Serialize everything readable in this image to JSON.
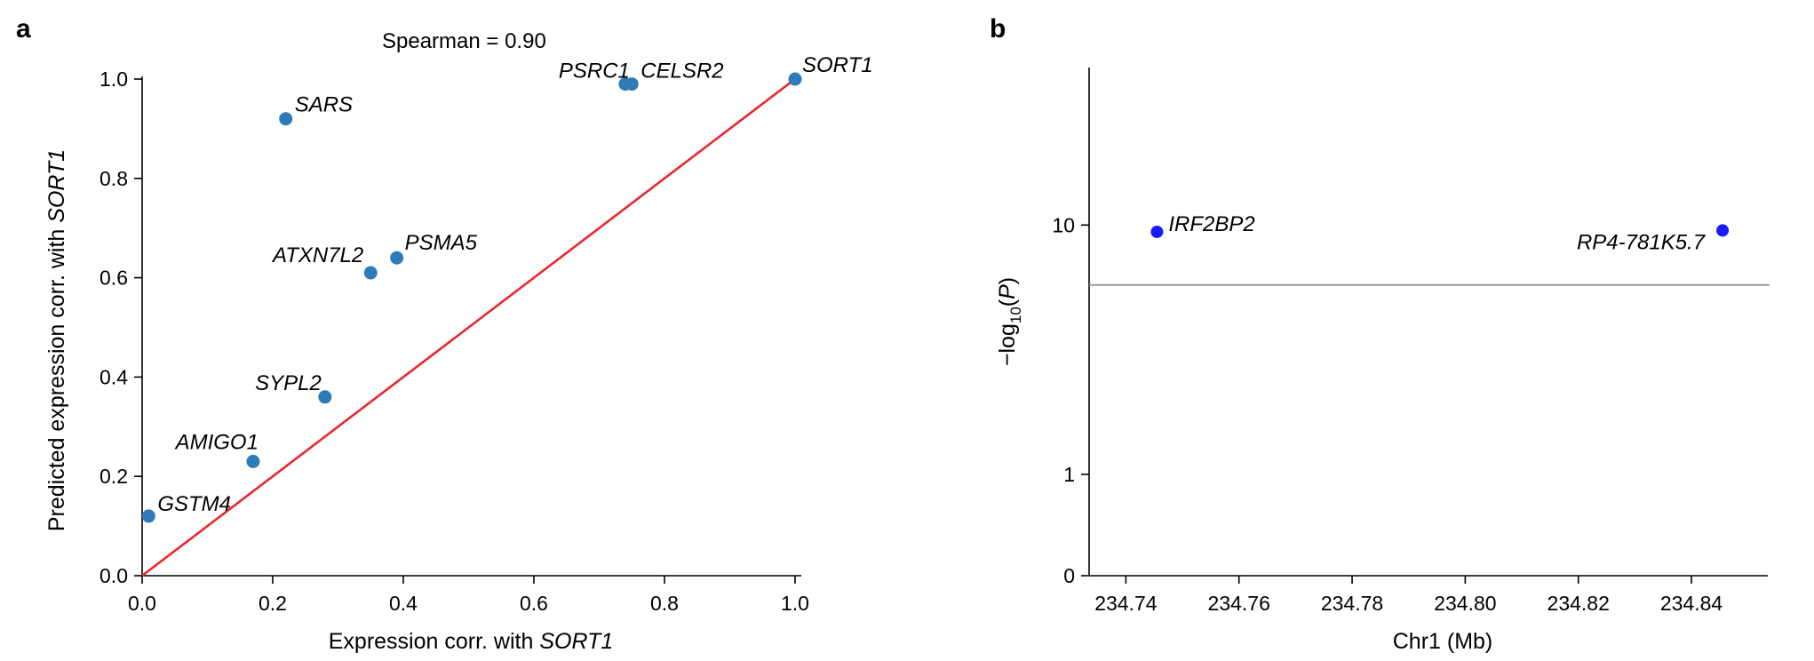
{
  "chart_data": [
    {
      "type": "scatter",
      "panel_label": "a",
      "title": "",
      "annotation": "Spearman = 0.90",
      "xlabel_prefix": "Expression corr. with ",
      "xlabel_gene": "SORT1",
      "ylabel_prefix": "Predicted expression corr. with ",
      "ylabel_gene": "SORT1",
      "xlim": [
        0.0,
        1.0
      ],
      "ylim": [
        0.0,
        1.0
      ],
      "xticks": [
        "0.0",
        "0.2",
        "0.4",
        "0.6",
        "0.8",
        "1.0"
      ],
      "yticks": [
        "0.0",
        "0.2",
        "0.4",
        "0.6",
        "0.8",
        "1.0"
      ],
      "grid": false,
      "point_color": "#2f7bb8",
      "line_color": "#e8262d",
      "reference_line": [
        [
          0.0,
          0.0
        ],
        [
          1.0,
          1.0
        ]
      ],
      "points": [
        {
          "label": "GSTM4",
          "x": 0.01,
          "y": 0.12
        },
        {
          "label": "AMIGO1",
          "x": 0.17,
          "y": 0.23
        },
        {
          "label": "SARS",
          "x": 0.22,
          "y": 0.92
        },
        {
          "label": "SYPL2",
          "x": 0.28,
          "y": 0.36
        },
        {
          "label": "ATXN7L2",
          "x": 0.35,
          "y": 0.61
        },
        {
          "label": "PSMA5",
          "x": 0.39,
          "y": 0.64
        },
        {
          "label": "PSRC1",
          "x": 0.74,
          "y": 0.99
        },
        {
          "label": "CELSR2",
          "x": 0.75,
          "y": 0.99
        },
        {
          "label": "SORT1",
          "x": 1.0,
          "y": 1.0
        }
      ]
    },
    {
      "type": "scatter",
      "panel_label": "b",
      "title": "",
      "xlabel": "Chr1 (Mb)",
      "ylabel_parts": [
        "−log",
        "10",
        "(",
        "P",
        ")"
      ],
      "xlim": [
        234.7335,
        234.8535
      ],
      "xticks": [
        "234.74",
        "234.76",
        "234.78",
        "234.80",
        "234.82",
        "234.84"
      ],
      "yticks": [
        "0",
        "1",
        "10"
      ],
      "y_scale": "log(1+y)",
      "grid": false,
      "point_color": "#1a1aff",
      "threshold_color": "#999999",
      "threshold": 6.3,
      "points": [
        {
          "label": "IRF2BP2",
          "x": 234.7455,
          "y": 9.5
        },
        {
          "label": "RP4-781K5.7",
          "x": 234.8455,
          "y": 9.6
        }
      ]
    }
  ]
}
